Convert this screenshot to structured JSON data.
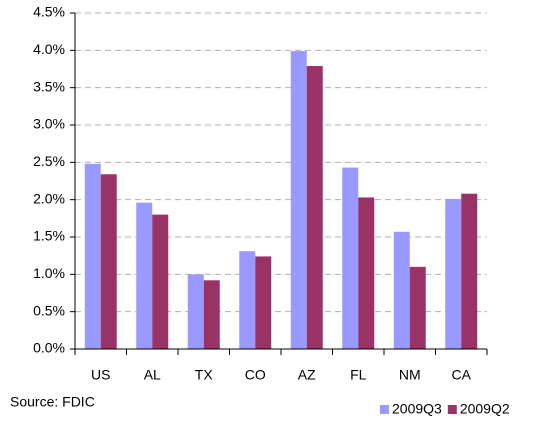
{
  "chart_data": {
    "type": "bar",
    "categories": [
      "US",
      "AL",
      "TX",
      "CO",
      "AZ",
      "FL",
      "NM",
      "CA"
    ],
    "series": [
      {
        "name": "2009Q3",
        "color": "#9999ff",
        "values": [
          2.48,
          1.96,
          1.0,
          1.31,
          3.99,
          2.43,
          1.57,
          2.01
        ]
      },
      {
        "name": "2009Q2",
        "color": "#993366",
        "values": [
          2.34,
          1.8,
          0.92,
          1.24,
          3.79,
          2.03,
          1.1,
          2.08
        ]
      }
    ],
    "ylim": [
      0,
      4.5
    ],
    "yticks": [
      {
        "value": 0,
        "label": "0.0%"
      },
      {
        "value": 0.5,
        "label": "0.5%"
      },
      {
        "value": 1,
        "label": "1.0%"
      },
      {
        "value": 1.5,
        "label": "1.5%"
      },
      {
        "value": 2,
        "label": "2.0%"
      },
      {
        "value": 2.5,
        "label": "2.5%"
      },
      {
        "value": 3,
        "label": "3.0%"
      },
      {
        "value": 3.5,
        "label": "3.5%"
      },
      {
        "value": 4,
        "label": "4.0%"
      },
      {
        "value": 4.5,
        "label": "4.5%"
      }
    ],
    "grid": true,
    "legend": "bottom-right",
    "source": "Source: FDIC"
  }
}
